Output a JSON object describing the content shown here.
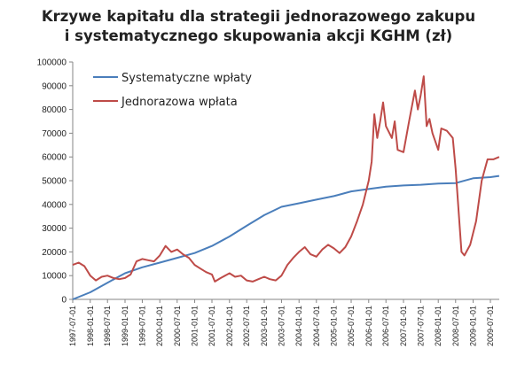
{
  "chart_data": {
    "type": "line",
    "title_lines": [
      "Krzywe kapitału dla strategii jednorazowego zakupu",
      "i systematycznego skupowania akcji KGHM (zł)"
    ],
    "xlabel": "",
    "ylabel": "",
    "ylim": [
      0,
      100000
    ],
    "y_ticks": [
      "0",
      "10000",
      "20000",
      "30000",
      "40000",
      "50000",
      "60000",
      "70000",
      "80000",
      "90000",
      "100000"
    ],
    "x_range": [
      "1997-07-01",
      "2009-07-01"
    ],
    "x_tick_labels": [
      "1997-07-01",
      "1998-01-01",
      "1998-07-01",
      "1999-01-01",
      "1999-07-01",
      "2000-01-01",
      "2000-07-01",
      "2001-01-01",
      "2001-07-01",
      "2002-01-01",
      "2002-07-01",
      "2003-01-01",
      "2003-07-01",
      "2004-01-01",
      "2004-07-01",
      "2005-01-01",
      "2005-07-01",
      "2006-01-01",
      "2006-07-01",
      "2007-01-01",
      "2007-07-01",
      "2008-01-01",
      "2008-07-01",
      "2009-01-01",
      "2009-07-01"
    ],
    "grid": {
      "horizontal": false,
      "vertical": false
    },
    "legend_position": "top-left",
    "series": [
      {
        "name": "Systematyczne wpłaty",
        "color": "#4a7ebb",
        "points": [
          [
            "1997-07-01",
            0
          ],
          [
            "1998-01-01",
            3000
          ],
          [
            "1998-07-01",
            7000
          ],
          [
            "1999-01-01",
            11000
          ],
          [
            "1999-07-01",
            13500
          ],
          [
            "2000-01-01",
            15500
          ],
          [
            "2000-07-01",
            17500
          ],
          [
            "2001-01-01",
            19500
          ],
          [
            "2001-07-01",
            22500
          ],
          [
            "2002-01-01",
            26500
          ],
          [
            "2002-07-01",
            31000
          ],
          [
            "2003-01-01",
            35500
          ],
          [
            "2003-07-01",
            39000
          ],
          [
            "2004-01-01",
            40500
          ],
          [
            "2004-07-01",
            42000
          ],
          [
            "2005-01-01",
            43500
          ],
          [
            "2005-07-01",
            45500
          ],
          [
            "2006-01-01",
            46500
          ],
          [
            "2006-07-01",
            47500
          ],
          [
            "2007-01-01",
            48000
          ],
          [
            "2007-07-01",
            48300
          ],
          [
            "2008-01-01",
            48800
          ],
          [
            "2008-07-01",
            49000
          ],
          [
            "2009-01-01",
            51000
          ],
          [
            "2009-07-01",
            51500
          ],
          [
            "2009-10-01",
            52000
          ]
        ]
      },
      {
        "name": "Jednorazowa wpłata",
        "color": "#be4b48",
        "points": [
          [
            "1997-07-01",
            14500
          ],
          [
            "1997-09-01",
            15500
          ],
          [
            "1997-11-01",
            14000
          ],
          [
            "1998-01-01",
            10000
          ],
          [
            "1998-03-01",
            8000
          ],
          [
            "1998-05-01",
            9500
          ],
          [
            "1998-07-01",
            10000
          ],
          [
            "1998-09-01",
            9000
          ],
          [
            "1998-11-01",
            8500
          ],
          [
            "1999-01-01",
            9000
          ],
          [
            "1999-03-01",
            10500
          ],
          [
            "1999-05-01",
            16000
          ],
          [
            "1999-07-01",
            17000
          ],
          [
            "1999-09-01",
            16500
          ],
          [
            "1999-11-01",
            16000
          ],
          [
            "2000-01-01",
            18500
          ],
          [
            "2000-03-01",
            22500
          ],
          [
            "2000-05-01",
            20000
          ],
          [
            "2000-07-01",
            21000
          ],
          [
            "2000-09-01",
            19000
          ],
          [
            "2000-11-01",
            17500
          ],
          [
            "2001-01-01",
            14500
          ],
          [
            "2001-03-01",
            13000
          ],
          [
            "2001-05-01",
            11500
          ],
          [
            "2001-07-01",
            10500
          ],
          [
            "2001-08-01",
            7500
          ],
          [
            "2001-10-01",
            9000
          ],
          [
            "2002-01-01",
            11000
          ],
          [
            "2002-03-01",
            9500
          ],
          [
            "2002-05-01",
            10000
          ],
          [
            "2002-07-01",
            8000
          ],
          [
            "2002-09-01",
            7500
          ],
          [
            "2002-11-01",
            8500
          ],
          [
            "2003-01-01",
            9500
          ],
          [
            "2003-03-01",
            8500
          ],
          [
            "2003-05-01",
            8000
          ],
          [
            "2003-07-01",
            10000
          ],
          [
            "2003-09-01",
            14500
          ],
          [
            "2003-11-01",
            17500
          ],
          [
            "2004-01-01",
            20000
          ],
          [
            "2004-03-01",
            22000
          ],
          [
            "2004-05-01",
            19000
          ],
          [
            "2004-07-01",
            18000
          ],
          [
            "2004-09-01",
            21000
          ],
          [
            "2004-11-01",
            23000
          ],
          [
            "2005-01-01",
            21500
          ],
          [
            "2005-03-01",
            19500
          ],
          [
            "2005-05-01",
            22000
          ],
          [
            "2005-07-01",
            26500
          ],
          [
            "2005-09-01",
            33000
          ],
          [
            "2005-11-01",
            40000
          ],
          [
            "2006-01-01",
            50000
          ],
          [
            "2006-02-01",
            58000
          ],
          [
            "2006-03-01",
            78000
          ],
          [
            "2006-04-01",
            68000
          ],
          [
            "2006-05-01",
            75000
          ],
          [
            "2006-06-01",
            83000
          ],
          [
            "2006-07-01",
            73000
          ],
          [
            "2006-09-01",
            68000
          ],
          [
            "2006-10-01",
            75000
          ],
          [
            "2006-11-01",
            63000
          ],
          [
            "2007-01-01",
            62000
          ],
          [
            "2007-03-01",
            75000
          ],
          [
            "2007-05-01",
            88000
          ],
          [
            "2007-06-01",
            80000
          ],
          [
            "2007-07-01",
            86000
          ],
          [
            "2007-08-01",
            94000
          ],
          [
            "2007-09-01",
            73000
          ],
          [
            "2007-10-01",
            76000
          ],
          [
            "2007-11-01",
            70000
          ],
          [
            "2008-01-01",
            63000
          ],
          [
            "2008-02-01",
            72000
          ],
          [
            "2008-04-01",
            71000
          ],
          [
            "2008-06-01",
            68000
          ],
          [
            "2008-07-01",
            55000
          ],
          [
            "2008-09-01",
            20000
          ],
          [
            "2008-10-01",
            18500
          ],
          [
            "2008-12-01",
            23000
          ],
          [
            "2009-02-01",
            33000
          ],
          [
            "2009-04-01",
            50000
          ],
          [
            "2009-06-01",
            59000
          ],
          [
            "2009-08-01",
            59000
          ],
          [
            "2009-10-01",
            60000
          ]
        ]
      }
    ]
  }
}
